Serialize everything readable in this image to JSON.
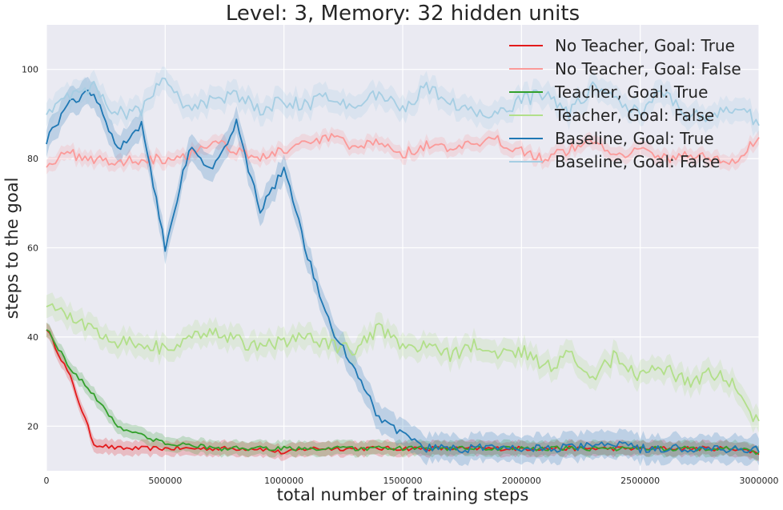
{
  "chart_data": {
    "type": "line",
    "title": "Level: 3, Memory: 32 hidden units",
    "xlabel": "total number of training steps",
    "ylabel": "steps to the goal",
    "xlim": [
      0,
      3000000
    ],
    "ylim": [
      10,
      110
    ],
    "x_ticks": [
      "0",
      "500000",
      "1000000",
      "1500000",
      "2000000",
      "2500000",
      "3000000"
    ],
    "x_tick_values": [
      0,
      500000,
      1000000,
      1500000,
      2000000,
      2500000,
      3000000
    ],
    "y_ticks": [
      "20",
      "40",
      "60",
      "80",
      "100"
    ],
    "y_tick_values": [
      20,
      40,
      60,
      80,
      100
    ],
    "grid": true,
    "legend_position": "top-right",
    "background": "#eaeaf2",
    "x": [
      0,
      100000,
      200000,
      300000,
      400000,
      500000,
      600000,
      700000,
      800000,
      900000,
      1000000,
      1100000,
      1200000,
      1300000,
      1400000,
      1500000,
      1600000,
      1700000,
      1800000,
      1900000,
      2000000,
      2100000,
      2200000,
      2300000,
      2400000,
      2500000,
      2600000,
      2700000,
      2800000,
      2900000,
      3000000
    ],
    "series": [
      {
        "name": "No Teacher, Goal: True",
        "color": "#e31a1c",
        "values": [
          42,
          31,
          16,
          15,
          15,
          15,
          15,
          15,
          15,
          15,
          14,
          15,
          15,
          15,
          15,
          15,
          15,
          15,
          15,
          15,
          15,
          15,
          15,
          15,
          15,
          15,
          15,
          15,
          15,
          15,
          14
        ]
      },
      {
        "name": "No Teacher, Goal: False",
        "color": "#fb9a99",
        "values": [
          79,
          81,
          80,
          79,
          80,
          80,
          81,
          84,
          82,
          80,
          82,
          83,
          85,
          82,
          84,
          81,
          83,
          82,
          83,
          84,
          82,
          80,
          82,
          84,
          81,
          82,
          80,
          81,
          80,
          79,
          85
        ]
      },
      {
        "name": "Teacher, Goal: True",
        "color": "#33a02c",
        "values": [
          42,
          33,
          27,
          20,
          18,
          16,
          16,
          15,
          15,
          15,
          15,
          15,
          15,
          15,
          15,
          15,
          15,
          15,
          15,
          15,
          15,
          15,
          15,
          15,
          15,
          15,
          15,
          15,
          15,
          15,
          14
        ]
      },
      {
        "name": "Teacher, Goal: False",
        "color": "#b2df8a",
        "values": [
          48,
          44,
          42,
          39,
          39,
          37,
          39,
          42,
          39,
          38,
          39,
          40,
          38,
          37,
          42,
          37,
          38,
          36,
          38,
          36,
          37,
          33,
          36,
          31,
          36,
          31,
          33,
          30,
          32,
          29,
          20
        ]
      },
      {
        "name": "Baseline, Goal: True",
        "color": "#1f78b4",
        "values": [
          84,
          93,
          95,
          82,
          88,
          60,
          82,
          78,
          88,
          68,
          78,
          58,
          42,
          33,
          22,
          18,
          15,
          15,
          15,
          15,
          15,
          15,
          15,
          16,
          16,
          15,
          15,
          15,
          15,
          15,
          15
        ]
      },
      {
        "name": "Baseline, Goal: False",
        "color": "#a6cee3",
        "values": [
          91,
          94,
          96,
          90,
          91,
          98,
          91,
          93,
          94,
          91,
          93,
          92,
          94,
          91,
          95,
          91,
          96,
          92,
          91,
          90,
          93,
          95,
          90,
          96,
          93,
          91,
          95,
          89,
          90,
          92,
          88
        ]
      }
    ]
  }
}
